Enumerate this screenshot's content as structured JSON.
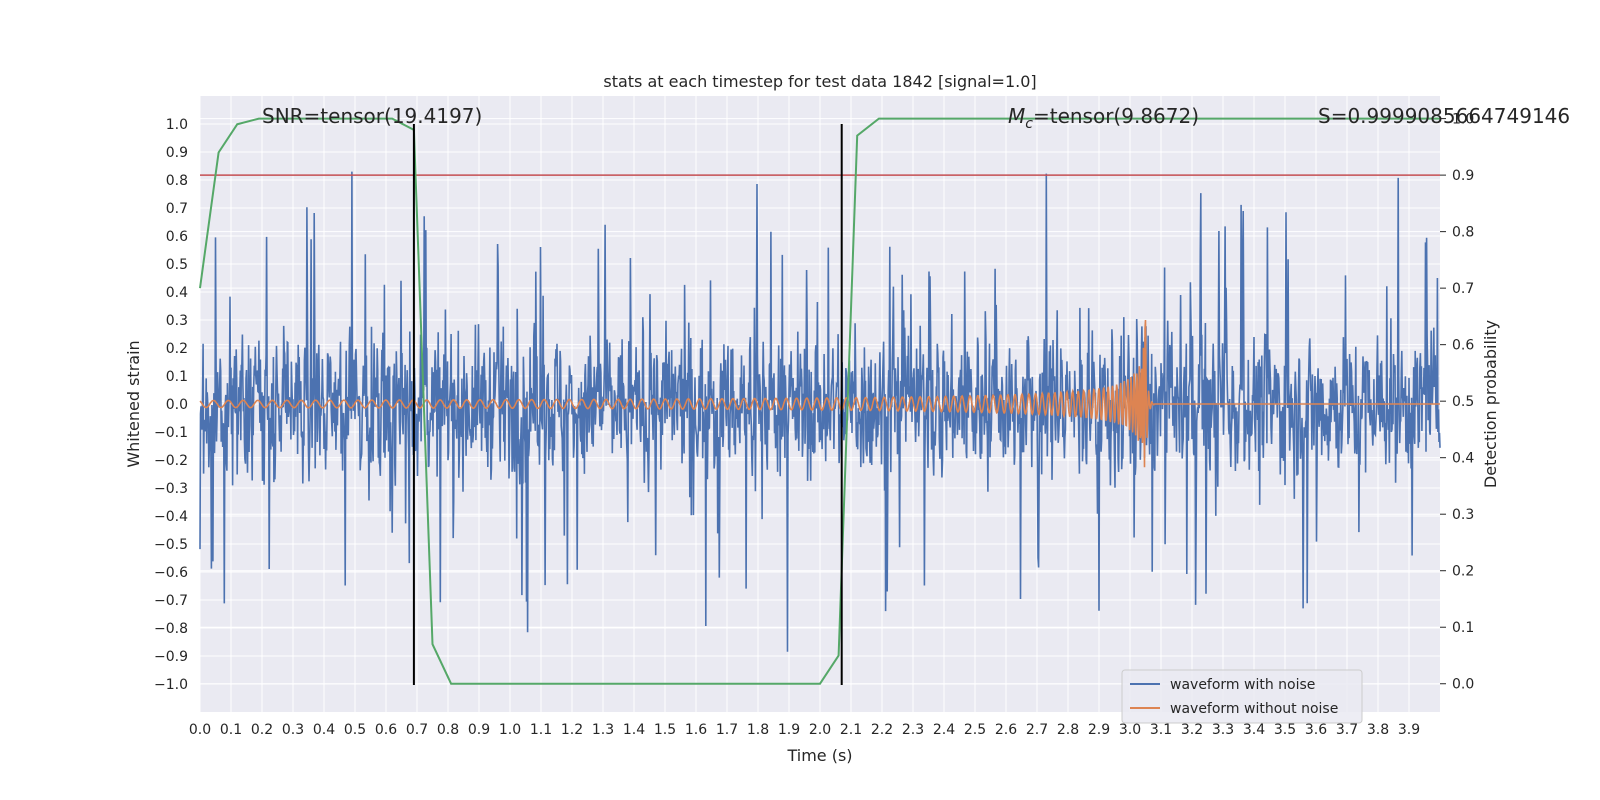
{
  "chart_data": {
    "type": "line",
    "title": "stats at each timestep for test data 1842 [signal=1.0]",
    "xlabel": "Time (s)",
    "ylabel": "Whitened strain",
    "y2label": "Detection probability",
    "xlim": [
      0.0,
      4.0
    ],
    "ylim": [
      -1.1,
      1.1
    ],
    "y2lim": [
      -0.05,
      1.04
    ],
    "x_ticks": [
      "0.0",
      "0.1",
      "0.2",
      "0.3",
      "0.4",
      "0.5",
      "0.6",
      "0.7",
      "0.8",
      "0.9",
      "1.0",
      "1.1",
      "1.2",
      "1.3",
      "1.4",
      "1.5",
      "1.6",
      "1.7",
      "1.8",
      "1.9",
      "2.0",
      "2.1",
      "2.2",
      "2.3",
      "2.4",
      "2.5",
      "2.6",
      "2.7",
      "2.8",
      "2.9",
      "3.0",
      "3.1",
      "3.2",
      "3.3",
      "3.4",
      "3.5",
      "3.6",
      "3.7",
      "3.8",
      "3.9"
    ],
    "y_ticks": [
      "1.0",
      "0.9",
      "0.8",
      "0.7",
      "0.6",
      "0.5",
      "0.4",
      "0.3",
      "0.2",
      "0.1",
      "0.0",
      "−0.1",
      "−0.2",
      "−0.3",
      "−0.4",
      "−0.5",
      "−0.6",
      "−0.7",
      "−0.8",
      "−0.9",
      "−1.0"
    ],
    "y2_ticks": [
      "1.0",
      "0.9",
      "0.8",
      "0.7",
      "0.6",
      "0.5",
      "0.4",
      "0.3",
      "0.2",
      "0.1",
      "0.0"
    ],
    "annotations": {
      "snr": "SNR=tensor(19.4197)",
      "mc_symbol": "M",
      "mc_sub": "c",
      "mc_value": "=tensor(9.8672)",
      "s": "S=0.9999085664749146"
    },
    "threshold": 0.9,
    "vertical_lines": [
      0.69,
      2.07
    ],
    "probability": {
      "x": [
        0.0,
        0.06,
        0.12,
        0.19,
        0.25,
        0.31,
        0.37,
        0.44,
        0.5,
        0.56,
        0.62,
        0.69,
        0.75,
        0.81,
        0.87,
        1.0,
        1.25,
        1.5,
        1.75,
        1.94,
        2.0,
        2.06,
        2.12,
        2.19,
        2.25,
        2.5,
        3.0,
        3.5,
        4.0
      ],
      "y": [
        0.7,
        0.94,
        0.99,
        1.0,
        1.0,
        1.0,
        1.0,
        1.0,
        1.0,
        1.0,
        1.0,
        0.98,
        0.07,
        0.0,
        0.0,
        0.0,
        0.0,
        0.0,
        0.0,
        0.0,
        0.0,
        0.05,
        0.97,
        1.0,
        1.0,
        1.0,
        1.0,
        1.0,
        1.0
      ]
    },
    "series": [
      {
        "name": "waveform with noise",
        "color": "#4c72b0"
      },
      {
        "name": "waveform without noise",
        "color": "#dd8452"
      }
    ],
    "colors": {
      "background": "#eaeaf2",
      "grid": "#ffffff",
      "threshold": "#c44e52",
      "probability": "#55a868",
      "vline": "#000000"
    }
  }
}
